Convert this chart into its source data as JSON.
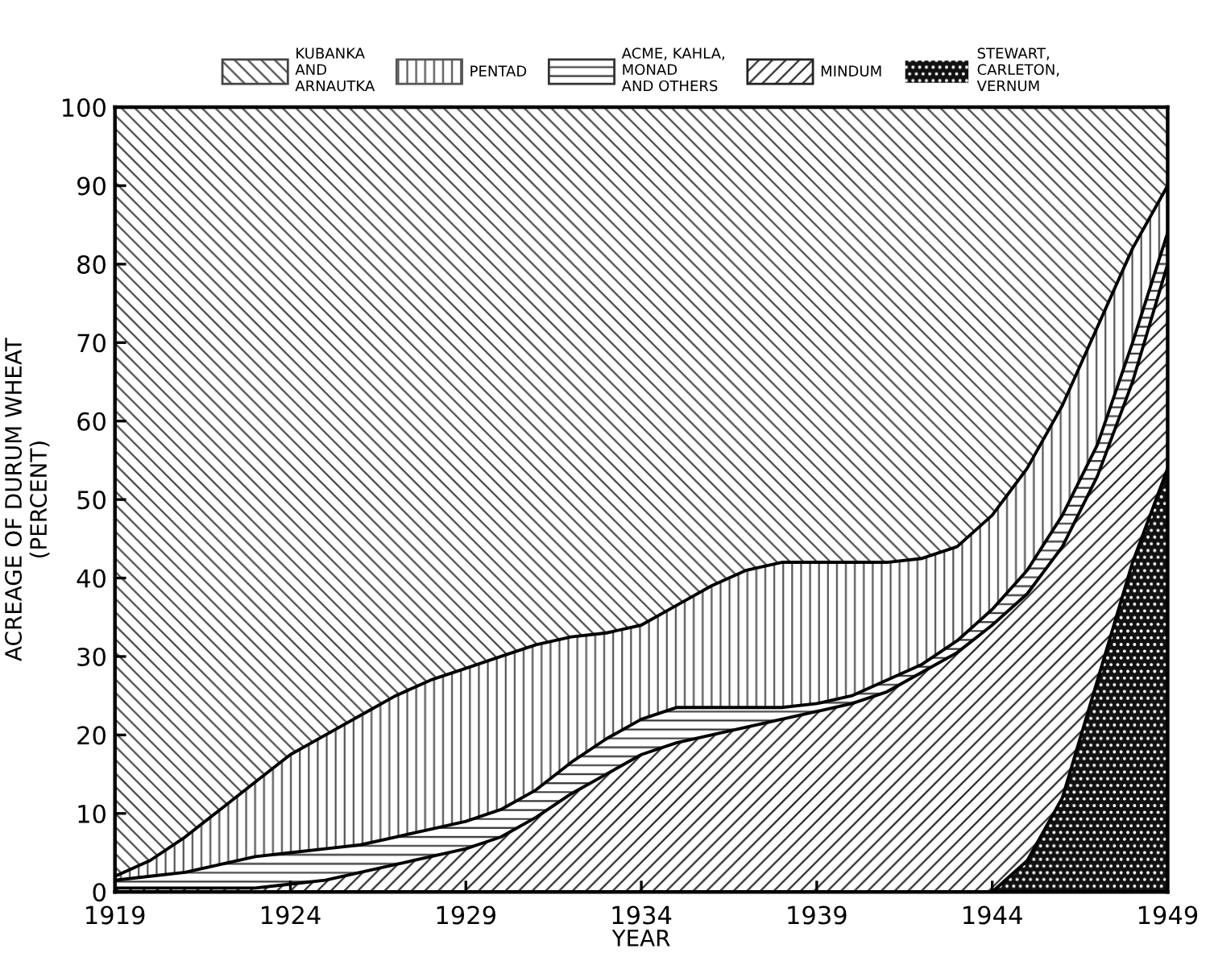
{
  "chart_data": {
    "type": "area",
    "stacked": true,
    "xlabel": "YEAR",
    "ylabel": "ACREAGE OF DURUM WHEAT\n(PERCENT)",
    "x": [
      1919,
      1920,
      1921,
      1922,
      1923,
      1924,
      1925,
      1926,
      1927,
      1928,
      1929,
      1930,
      1931,
      1932,
      1933,
      1934,
      1935,
      1936,
      1937,
      1938,
      1939,
      1940,
      1941,
      1942,
      1943,
      1944,
      1945,
      1946,
      1947,
      1948,
      1949
    ],
    "series": [
      {
        "name": "STEWART,\nCARLETON,\nVERNUM",
        "color": "#111111",
        "values": [
          0,
          0,
          0,
          0,
          0,
          0,
          0,
          0,
          0,
          0,
          0,
          0,
          0,
          0,
          0,
          0,
          0,
          0,
          0,
          0,
          0,
          0,
          0,
          0,
          0,
          0,
          4,
          12,
          27,
          42,
          54
        ]
      },
      {
        "name": "MINDUM",
        "color": "#222222",
        "values": [
          0.5,
          0.5,
          0.5,
          0.5,
          0.5,
          1,
          1.5,
          2.5,
          3.5,
          4.5,
          5.5,
          7,
          9.5,
          12.5,
          15,
          17.5,
          19,
          20,
          21,
          22,
          23,
          24,
          25.5,
          28,
          30.5,
          34,
          34,
          32,
          26,
          23,
          26
        ]
      },
      {
        "name": "ACME, KAHLA,\nMONAD\nAND OTHERS",
        "color": "#333333",
        "values": [
          1,
          1.5,
          2,
          3,
          4,
          4,
          4,
          3.5,
          3.5,
          3.5,
          3.5,
          3.5,
          3.5,
          4,
          4.5,
          4.5,
          4.5,
          3.5,
          2.5,
          1.5,
          1,
          1,
          1.5,
          1,
          1.5,
          2,
          3,
          4,
          4,
          5,
          4
        ]
      },
      {
        "name": "PENTAD",
        "color": "#555555",
        "values": [
          0.5,
          2,
          4.5,
          7,
          9.5,
          12.5,
          14.5,
          16.5,
          18,
          19,
          19.5,
          19.5,
          18.5,
          16,
          13.5,
          12,
          13,
          15.5,
          17.5,
          18.5,
          18,
          17,
          15,
          13.5,
          12,
          12,
          13,
          14,
          15,
          12,
          6
        ]
      },
      {
        "name": "KUBANKA\nAND\nARNAUTKA",
        "color": "#444444",
        "values": [
          98,
          96,
          93,
          89.5,
          86,
          82.5,
          80,
          77.5,
          75,
          73,
          71.5,
          70,
          68.5,
          67.5,
          67,
          66,
          63.5,
          61,
          59,
          58,
          58,
          58,
          58,
          57.5,
          56,
          52,
          46,
          38,
          28,
          18,
          10
        ]
      }
    ],
    "xlim": [
      1919,
      1949
    ],
    "xticks": [
      1919,
      1924,
      1929,
      1934,
      1939,
      1944,
      1949
    ],
    "ylim": [
      0,
      100
    ],
    "yticks": [
      0,
      10,
      20,
      30,
      40,
      50,
      60,
      70,
      80,
      90,
      100
    ],
    "grid": false,
    "legend": "top"
  }
}
